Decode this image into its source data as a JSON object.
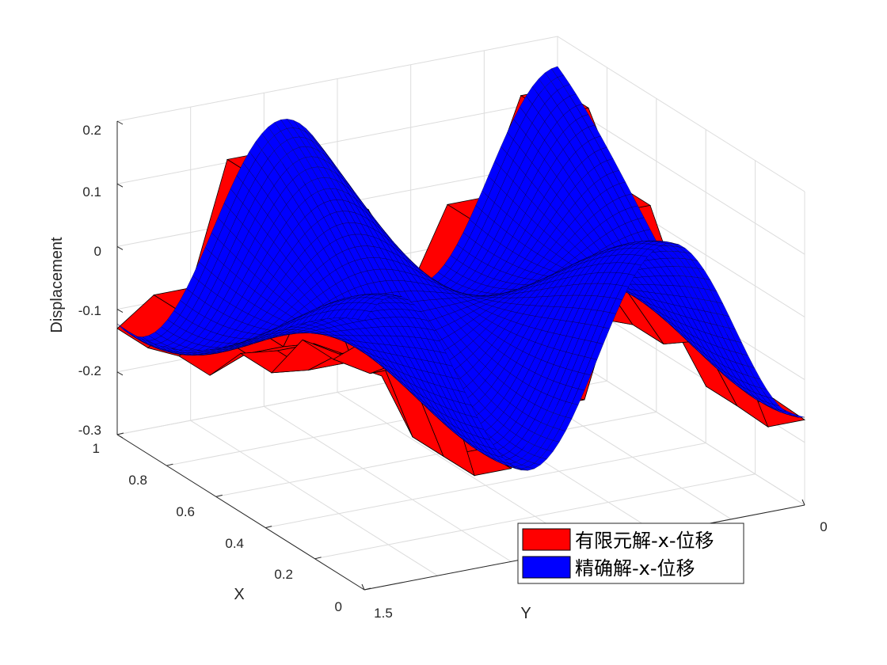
{
  "chart_data": {
    "type": "surface3d",
    "title": "",
    "xlabel": "X",
    "ylabel": "Y",
    "zlabel": "Displacement",
    "xlim": [
      0,
      1
    ],
    "ylim": [
      0,
      1.5
    ],
    "zlim": [
      -0.3,
      0.2
    ],
    "x_ticks": [
      "0",
      "0.2",
      "0.4",
      "0.6",
      "0.8",
      "1"
    ],
    "y_ticks": [
      "0",
      "1.5"
    ],
    "z_ticks": [
      "-0.3",
      "-0.2",
      "-0.1",
      "0",
      "0.1",
      "0.2"
    ],
    "grid": true,
    "legend_position": "bottom-right",
    "series": [
      {
        "name": "有限元解-x-位移",
        "color": "#ff0000",
        "style": "coarse triangular mesh"
      },
      {
        "name": "精确解-x-位移",
        "color": "#0000ff",
        "style": "fine structured mesh"
      }
    ]
  }
}
